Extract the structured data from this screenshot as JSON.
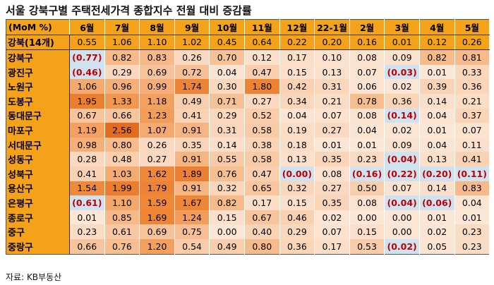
{
  "title": "서울 강북구별 주택전세가격 종합지수 전월 대비 증감률",
  "source": "자료: KB부동산",
  "colors": {
    "header": "#f5a21b",
    "scale_low": "#fce6d6",
    "scale_mid": "#f8c9a4",
    "scale_high": "#f08b3c",
    "scale_max": "#e36c1c",
    "negative_bg": "#cfe2ef",
    "negative_text": "#c00000"
  },
  "chart_data": {
    "type": "table",
    "title": "서울 강북구별 주택전세가격 종합지수 전월 대비 증감률",
    "corner_label": "(MoM %)",
    "columns": [
      "6월",
      "7월",
      "8월",
      "9월",
      "10월",
      "11월",
      "12월",
      "22-1월",
      "2월",
      "3월",
      "4월",
      "5월"
    ],
    "rows": [
      {
        "name": "강북(14개)",
        "aggregate": true,
        "values": [
          "0.55",
          "1.06",
          "1.10",
          "1.02",
          "0.45",
          "0.64",
          "0.22",
          "0.20",
          "0.16",
          "0.01",
          "0.12",
          "0.26"
        ]
      },
      {
        "name": "강북구",
        "values": [
          "(0.77)",
          "0.82",
          "0.83",
          "0.26",
          "0.70",
          "0.12",
          "0.17",
          "0.10",
          "0.08",
          "0.09",
          "0.82",
          "0.81"
        ]
      },
      {
        "name": "광진구",
        "values": [
          "(0.46)",
          "0.29",
          "0.69",
          "0.72",
          "0.04",
          "0.47",
          "0.15",
          "0.13",
          "0.07",
          "(0.03)",
          "0.01",
          "0.33"
        ]
      },
      {
        "name": "노원구",
        "values": [
          "1.06",
          "0.96",
          "0.99",
          "1.74",
          "0.30",
          "1.80",
          "0.42",
          "0.31",
          "0.06",
          "0.02",
          "0.39",
          "0.36"
        ]
      },
      {
        "name": "도봉구",
        "values": [
          "1.95",
          "1.33",
          "1.18",
          "0.49",
          "0.71",
          "0.27",
          "0.34",
          "0.21",
          "0.78",
          "0.36",
          "0.14",
          "0.21"
        ]
      },
      {
        "name": "동대문구",
        "values": [
          "0.67",
          "0.66",
          "1.23",
          "0.41",
          "0.29",
          "0.52",
          "0.04",
          "0.07",
          "0.08",
          "(0.14)",
          "0.04",
          "0.37"
        ]
      },
      {
        "name": "마포구",
        "values": [
          "1.19",
          "2.56",
          "1.07",
          "0.91",
          "0.31",
          "0.58",
          "0.19",
          "0.27",
          "0.04",
          "0.02",
          "0.01",
          "0.07"
        ]
      },
      {
        "name": "서대문구",
        "values": [
          "0.98",
          "0.80",
          "0.26",
          "0.35",
          "0.14",
          "0.38",
          "0.18",
          "0.01",
          "0.01",
          "0.09",
          "0.04",
          "0.11"
        ]
      },
      {
        "name": "성동구",
        "values": [
          "0.28",
          "0.48",
          "0.27",
          "0.91",
          "0.55",
          "0.58",
          "0.13",
          "0.35",
          "0.23",
          "(0.04)",
          "0.13",
          "0.41"
        ]
      },
      {
        "name": "성북구",
        "values": [
          "0.41",
          "1.03",
          "1.62",
          "1.89",
          "0.76",
          "0.47",
          "(0.00)",
          "0.08",
          "(0.16)",
          "(0.22)",
          "(0.20)",
          "(0.11)"
        ]
      },
      {
        "name": "용산구",
        "values": [
          "1.54",
          "1.99",
          "1.79",
          "0.91",
          "0.32",
          "0.65",
          "0.32",
          "0.27",
          "0.50",
          "0.07",
          "0.14",
          "0.83"
        ]
      },
      {
        "name": "은평구",
        "values": [
          "(0.61)",
          "1.10",
          "1.59",
          "1.67",
          "0.82",
          "0.17",
          "0.15",
          "0.35",
          "0.08",
          "(0.04)",
          "(0.06)",
          "0.04"
        ]
      },
      {
        "name": "종로구",
        "values": [
          "0.01",
          "0.85",
          "1.69",
          "1.24",
          "0.15",
          "0.67",
          "0.46",
          "0.02",
          "0.00",
          "0.00",
          "0.01",
          "0.01"
        ]
      },
      {
        "name": "중구",
        "values": [
          "0.23",
          "0.61",
          "0.69",
          "0.75",
          "0.00",
          "0.40",
          "0.29",
          "0.07",
          "0.15",
          "0.00",
          "0.02",
          "0.23"
        ]
      },
      {
        "name": "중랑구",
        "values": [
          "0.66",
          "0.76",
          "1.20",
          "0.54",
          "0.49",
          "0.80",
          "0.36",
          "0.17",
          "0.53",
          "(0.02)",
          "0.05",
          "0.23"
        ]
      }
    ]
  }
}
